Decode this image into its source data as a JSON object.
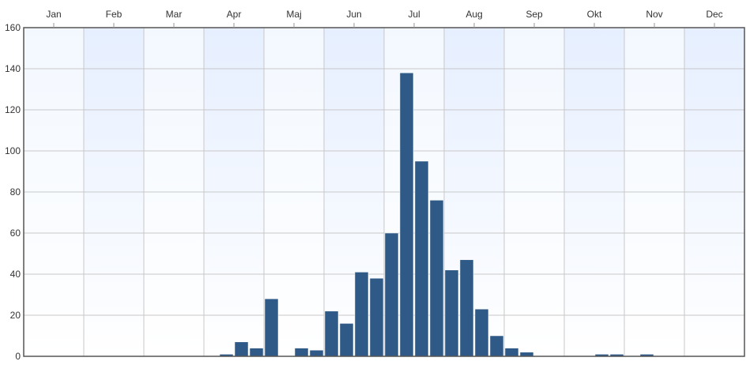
{
  "chart_data": {
    "type": "bar",
    "title": "",
    "xlabel": "",
    "ylabel": "",
    "ylim": [
      0,
      160
    ],
    "yticks": [
      0,
      20,
      40,
      60,
      80,
      100,
      120,
      140,
      160
    ],
    "grid": true,
    "legend": "none",
    "xaxis_position": "top",
    "months": [
      "Jan",
      "Feb",
      "Mar",
      "Apr",
      "Maj",
      "Jun",
      "Jul",
      "Aug",
      "Sep",
      "Okt",
      "Nov",
      "Dec"
    ],
    "bins_per_month": 4,
    "values": [
      0,
      0,
      0,
      0,
      0,
      0,
      0,
      0,
      0,
      0,
      0,
      0,
      0,
      1,
      7,
      4,
      28,
      0,
      4,
      3,
      22,
      16,
      41,
      38,
      60,
      138,
      95,
      76,
      42,
      47,
      23,
      10,
      4,
      2,
      0,
      0,
      0,
      0,
      1,
      1,
      0,
      1,
      0,
      0,
      0,
      0,
      0,
      0
    ],
    "bar_color": "#2f5a87",
    "band_color": "#e6efff"
  }
}
